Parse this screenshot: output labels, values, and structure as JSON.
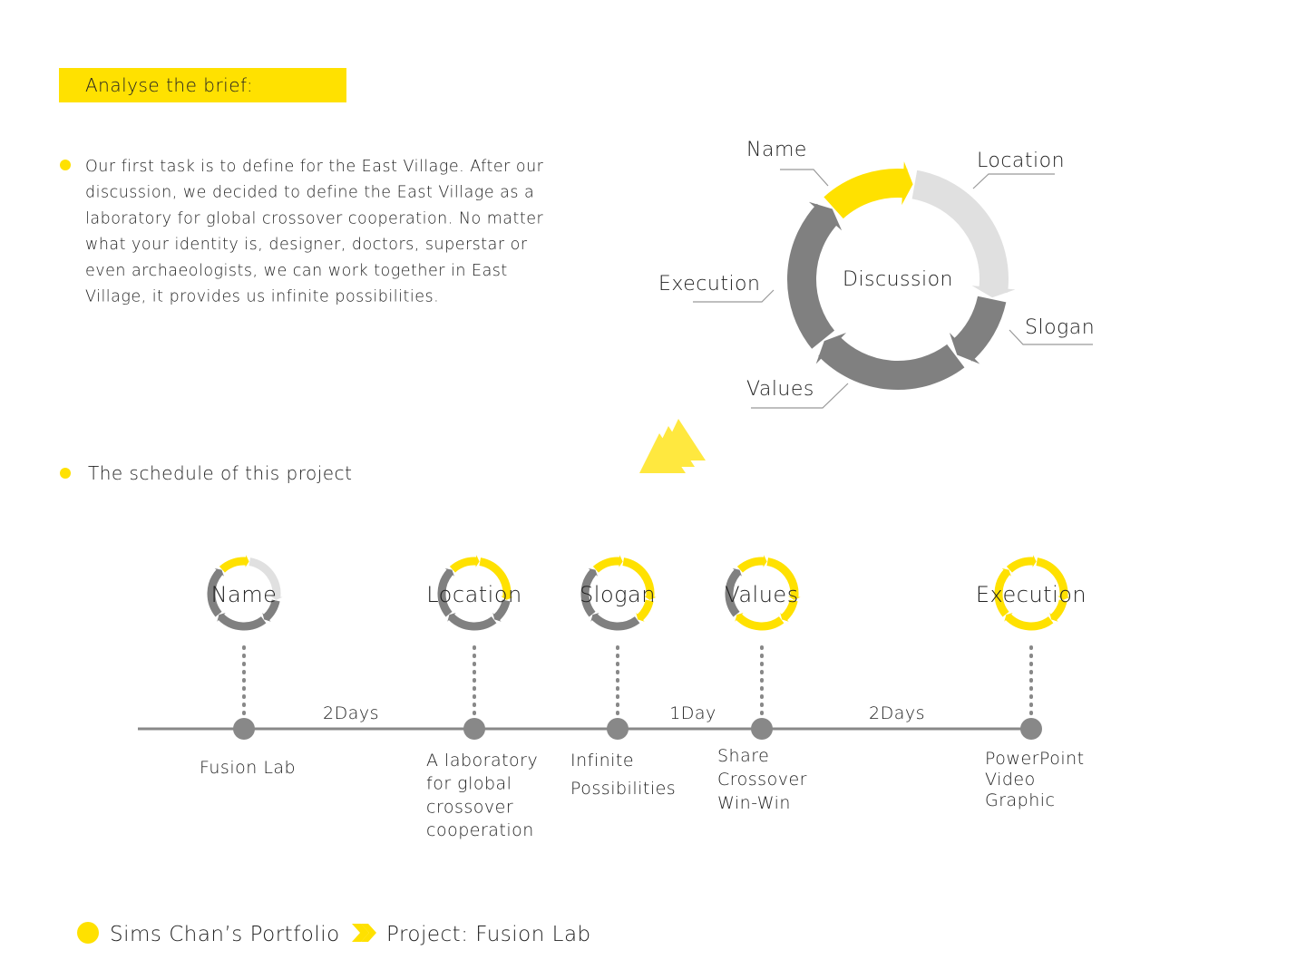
{
  "header": {
    "title": "Analyse the brief:"
  },
  "brief": {
    "lines": [
      "Our first task is to define for the East Village. After our",
      "discussion, we decided to define the East Village as a",
      "laboratory for global crossover cooperation. No matter",
      " what your identity is, designer, doctors, superstar or",
      "even archaeologists, we can work together in East",
      "Village, it provides us infinite possibilities."
    ]
  },
  "cycle": {
    "center": "Discussion",
    "labels": [
      "Name",
      "Location",
      "Slogan",
      "Values",
      "Execution"
    ]
  },
  "schedule": {
    "title": "The schedule of this project",
    "milestones": [
      {
        "label": "Name",
        "notes": [
          "Fusion Lab"
        ]
      },
      {
        "label": "Location",
        "notes": [
          "A laboratory",
          "for global",
          "crossover",
          "cooperation"
        ]
      },
      {
        "label": "Slogan",
        "notes": [
          "Infinite",
          "Possibilities"
        ]
      },
      {
        "label": "Values",
        "notes": [
          "Share",
          "Crossover",
          "Win-Win"
        ]
      },
      {
        "label": "Execution",
        "notes": [
          "PowerPoint",
          "Video",
          "Graphic"
        ]
      }
    ],
    "durations": [
      "2Days",
      "1Day",
      "2Days"
    ]
  },
  "footer": {
    "portfolio": "Sims Chan’s Portfolio",
    "project": "Project: Fusion Lab"
  }
}
